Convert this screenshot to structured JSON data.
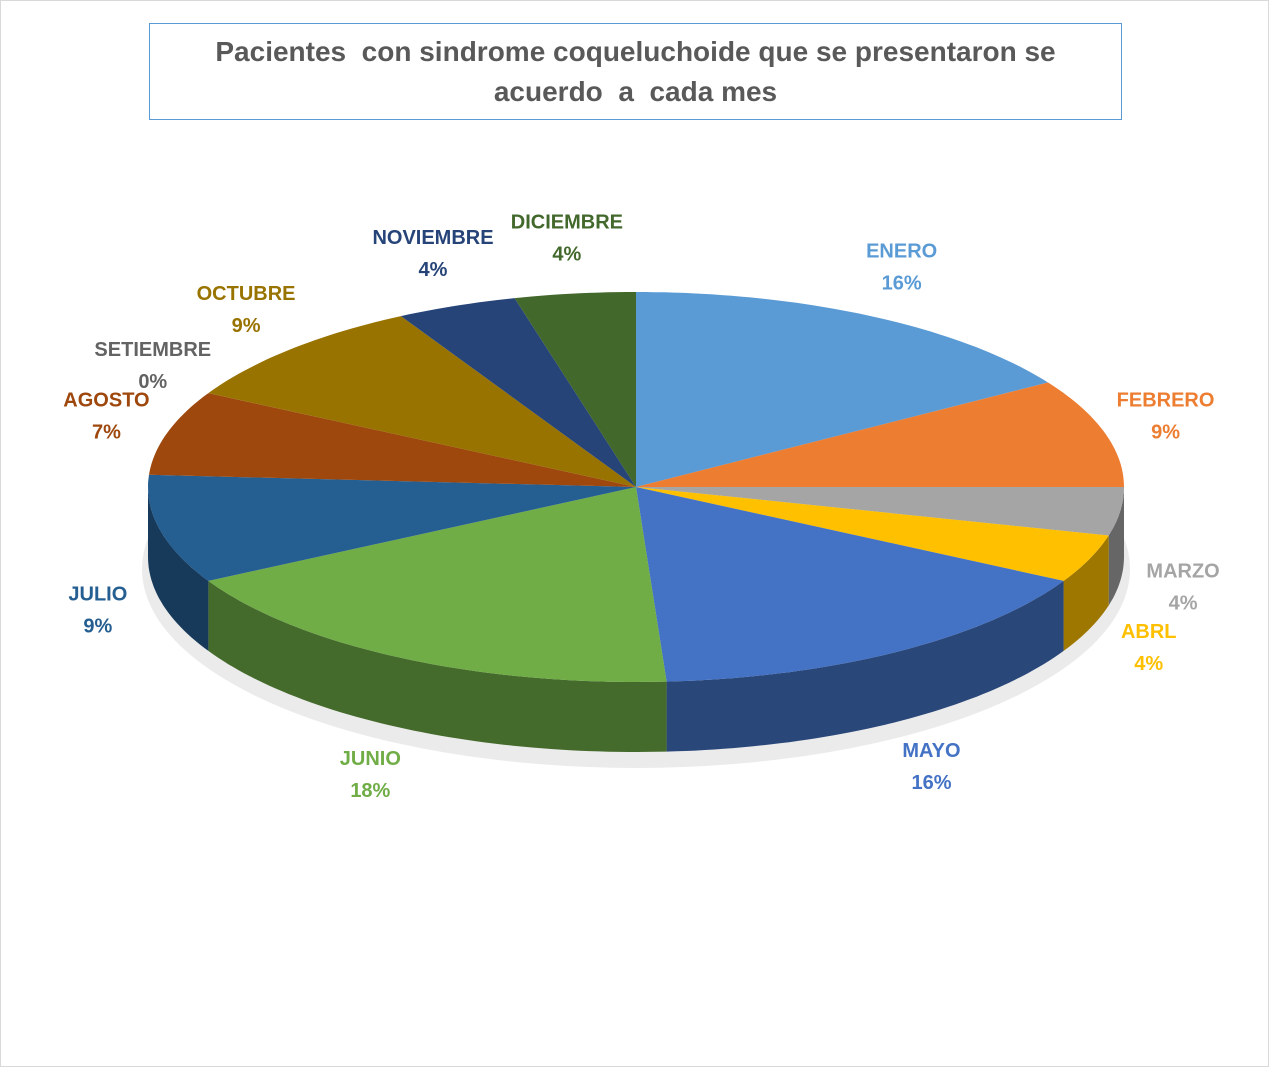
{
  "chart_data": {
    "type": "pie",
    "title": "Pacientes  con sindrome coqueluchoide que se presentaron se acuerdo  a  cada mes",
    "categories": [
      "ENERO",
      "FEBRERO",
      "MARZO",
      "ABRL",
      "MAYO",
      "JUNIO",
      "JULIO",
      "AGOSTO",
      "SETIEMBRE",
      "OCTUBRE",
      "NOVIEMBRE",
      "DICIEMBRE"
    ],
    "values": [
      16,
      9,
      4,
      4,
      16,
      18,
      9,
      7,
      0,
      9,
      4,
      4
    ],
    "value_labels": [
      "16%",
      "9%",
      "4%",
      "4%",
      "16%",
      "18%",
      "9%",
      "7%",
      "0%",
      "9%",
      "4%",
      "4%"
    ],
    "colors": [
      "#5b9bd5",
      "#ed7d31",
      "#a5a5a5",
      "#ffc000",
      "#4472c4",
      "#70ad47",
      "#255e91",
      "#9e480e",
      "#636363",
      "#997300",
      "#264478",
      "#43682b"
    ]
  }
}
